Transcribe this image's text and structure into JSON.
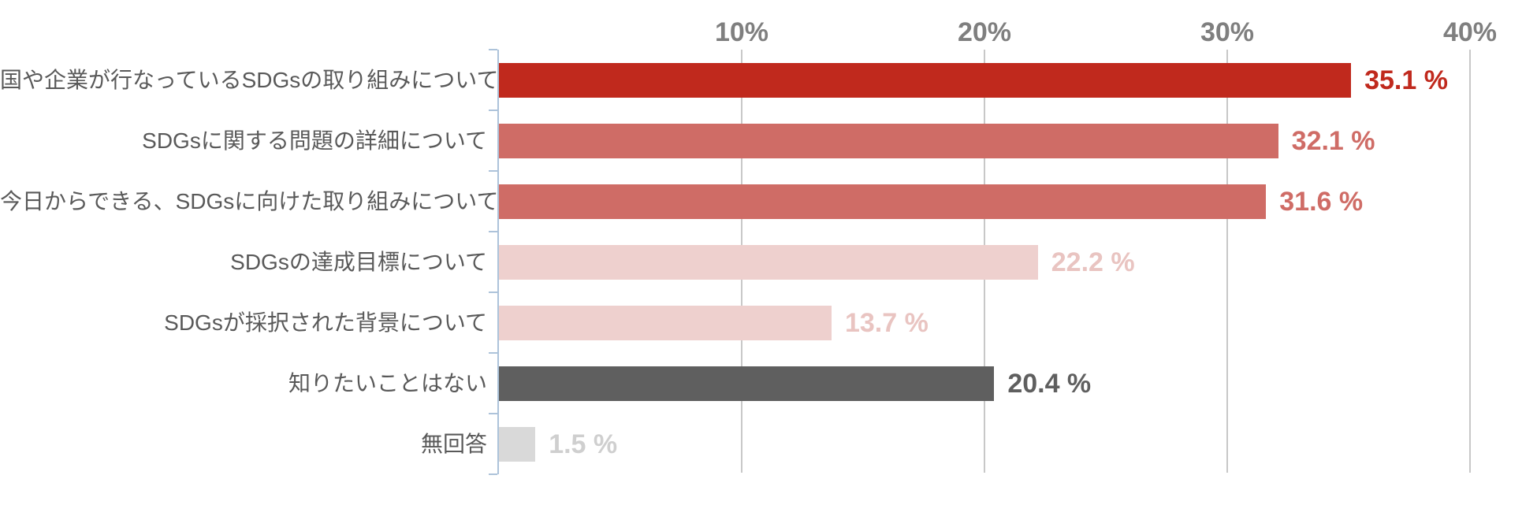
{
  "chart_data": {
    "type": "bar",
    "orientation": "horizontal",
    "title": "",
    "xlabel": "",
    "ylabel": "",
    "unit": "%",
    "xlim": [
      0,
      40.8
    ],
    "grid": true,
    "legend": false,
    "tick_position": "top",
    "x_ticks": [
      {
        "value": 10,
        "label": "10%"
      },
      {
        "value": 20,
        "label": "20%"
      },
      {
        "value": 30,
        "label": "30%"
      },
      {
        "value": 40,
        "label": "40%"
      }
    ],
    "categories": [
      "国や企業が行なっているSDGsの取り組みについて",
      "SDGsに関する問題の詳細について",
      "今日からできる、SDGsに向けた取り組みについて",
      "SDGsの達成目標について",
      "SDGsが採択された背景について",
      "知りたいことはない",
      "無回答"
    ],
    "values": [
      35.1,
      32.1,
      31.6,
      22.2,
      13.7,
      20.4,
      1.5
    ],
    "items": [
      {
        "label": "国や企業が行なっているSDGsの取り組みについて",
        "value": 35.1,
        "value_label": "35.1 %",
        "bar_color": "#c0291d",
        "value_color": "#c0291d"
      },
      {
        "label": "SDGsに関する問題の詳細について",
        "value": 32.1,
        "value_label": "32.1 %",
        "bar_color": "#cf6c66",
        "value_color": "#cf6c66"
      },
      {
        "label": "今日からできる、SDGsに向けた取り組みについて",
        "value": 31.6,
        "value_label": "31.6 %",
        "bar_color": "#cf6c66",
        "value_color": "#cf6c66"
      },
      {
        "label": "SDGsの達成目標について",
        "value": 22.2,
        "value_label": "22.2 %",
        "bar_color": "#eed0ce",
        "value_color": "#e9c4c1"
      },
      {
        "label": "SDGsが採択された背景について",
        "value": 13.7,
        "value_label": "13.7 %",
        "bar_color": "#eed0ce",
        "value_color": "#e9c4c1"
      },
      {
        "label": "知りたいことはない",
        "value": 20.4,
        "value_label": "20.4 %",
        "bar_color": "#5f5f5f",
        "value_color": "#5f5f5f"
      },
      {
        "label": "無回答",
        "value": 1.5,
        "value_label": "1.5 %",
        "bar_color": "#d9d9d9",
        "value_color": "#cfcfcf"
      }
    ],
    "colors": {
      "background": "#ffffff",
      "axis": "#adc3da",
      "grid": "#c8c8c8",
      "tick_label": "#7f7f7f",
      "category_label": "#595959"
    }
  }
}
